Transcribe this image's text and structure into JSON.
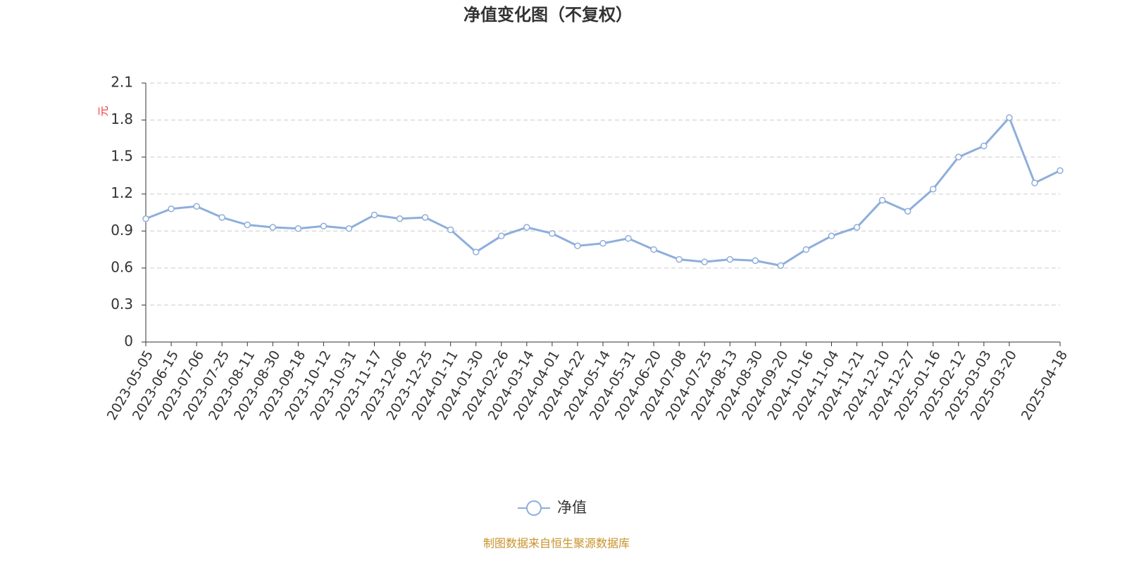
{
  "chart_data": {
    "type": "line",
    "title": "净值变化图（不复权）",
    "y_label": "元",
    "categories": [
      "2023-05-05",
      "2023-06-15",
      "2023-07-06",
      "2023-07-25",
      "2023-08-11",
      "2023-08-30",
      "2023-09-18",
      "2023-10-12",
      "2023-10-31",
      "2023-11-17",
      "2023-12-06",
      "2023-12-25",
      "2024-01-11",
      "2024-01-30",
      "2024-02-26",
      "2024-03-14",
      "2024-04-01",
      "2024-04-22",
      "2024-05-14",
      "2024-05-31",
      "2024-06-20",
      "2024-07-08",
      "2024-07-25",
      "2024-08-13",
      "2024-08-30",
      "2024-09-20",
      "2024-10-16",
      "2024-11-04",
      "2024-11-21",
      "2024-12-10",
      "2024-12-27",
      "2025-01-16",
      "2025-02-12",
      "2025-03-03",
      "2025-03-20",
      null,
      "2025-04-18"
    ],
    "series": [
      {
        "name": "净值",
        "color": "#8eaedc",
        "values": [
          1.0,
          1.08,
          1.1,
          1.01,
          0.95,
          0.93,
          0.92,
          0.94,
          0.92,
          1.03,
          1.0,
          1.01,
          0.91,
          0.73,
          0.86,
          0.93,
          0.88,
          0.78,
          0.8,
          0.84,
          0.75,
          0.67,
          0.65,
          0.67,
          0.66,
          0.62,
          0.75,
          0.86,
          0.93,
          1.15,
          1.06,
          1.24,
          1.5,
          1.59,
          1.82,
          1.29,
          1.39
        ]
      }
    ],
    "ylim": [
      0,
      2.1
    ],
    "yticks": [
      0,
      {
        "value": 0.3,
        "label": "0.3"
      },
      {
        "value": 0.6,
        "label": "0.6"
      },
      {
        "value": 0.9,
        "label": "0.9"
      },
      {
        "value": 1.2,
        "label": "1.2"
      },
      {
        "value": 1.5,
        "label": "1.5"
      },
      {
        "value": 1.8,
        "label": "1.8"
      },
      {
        "value": 2.1,
        "label": "2.1"
      }
    ],
    "grid": true,
    "legend": "bottom",
    "source": "制图数据来自恒生聚源数据库"
  }
}
